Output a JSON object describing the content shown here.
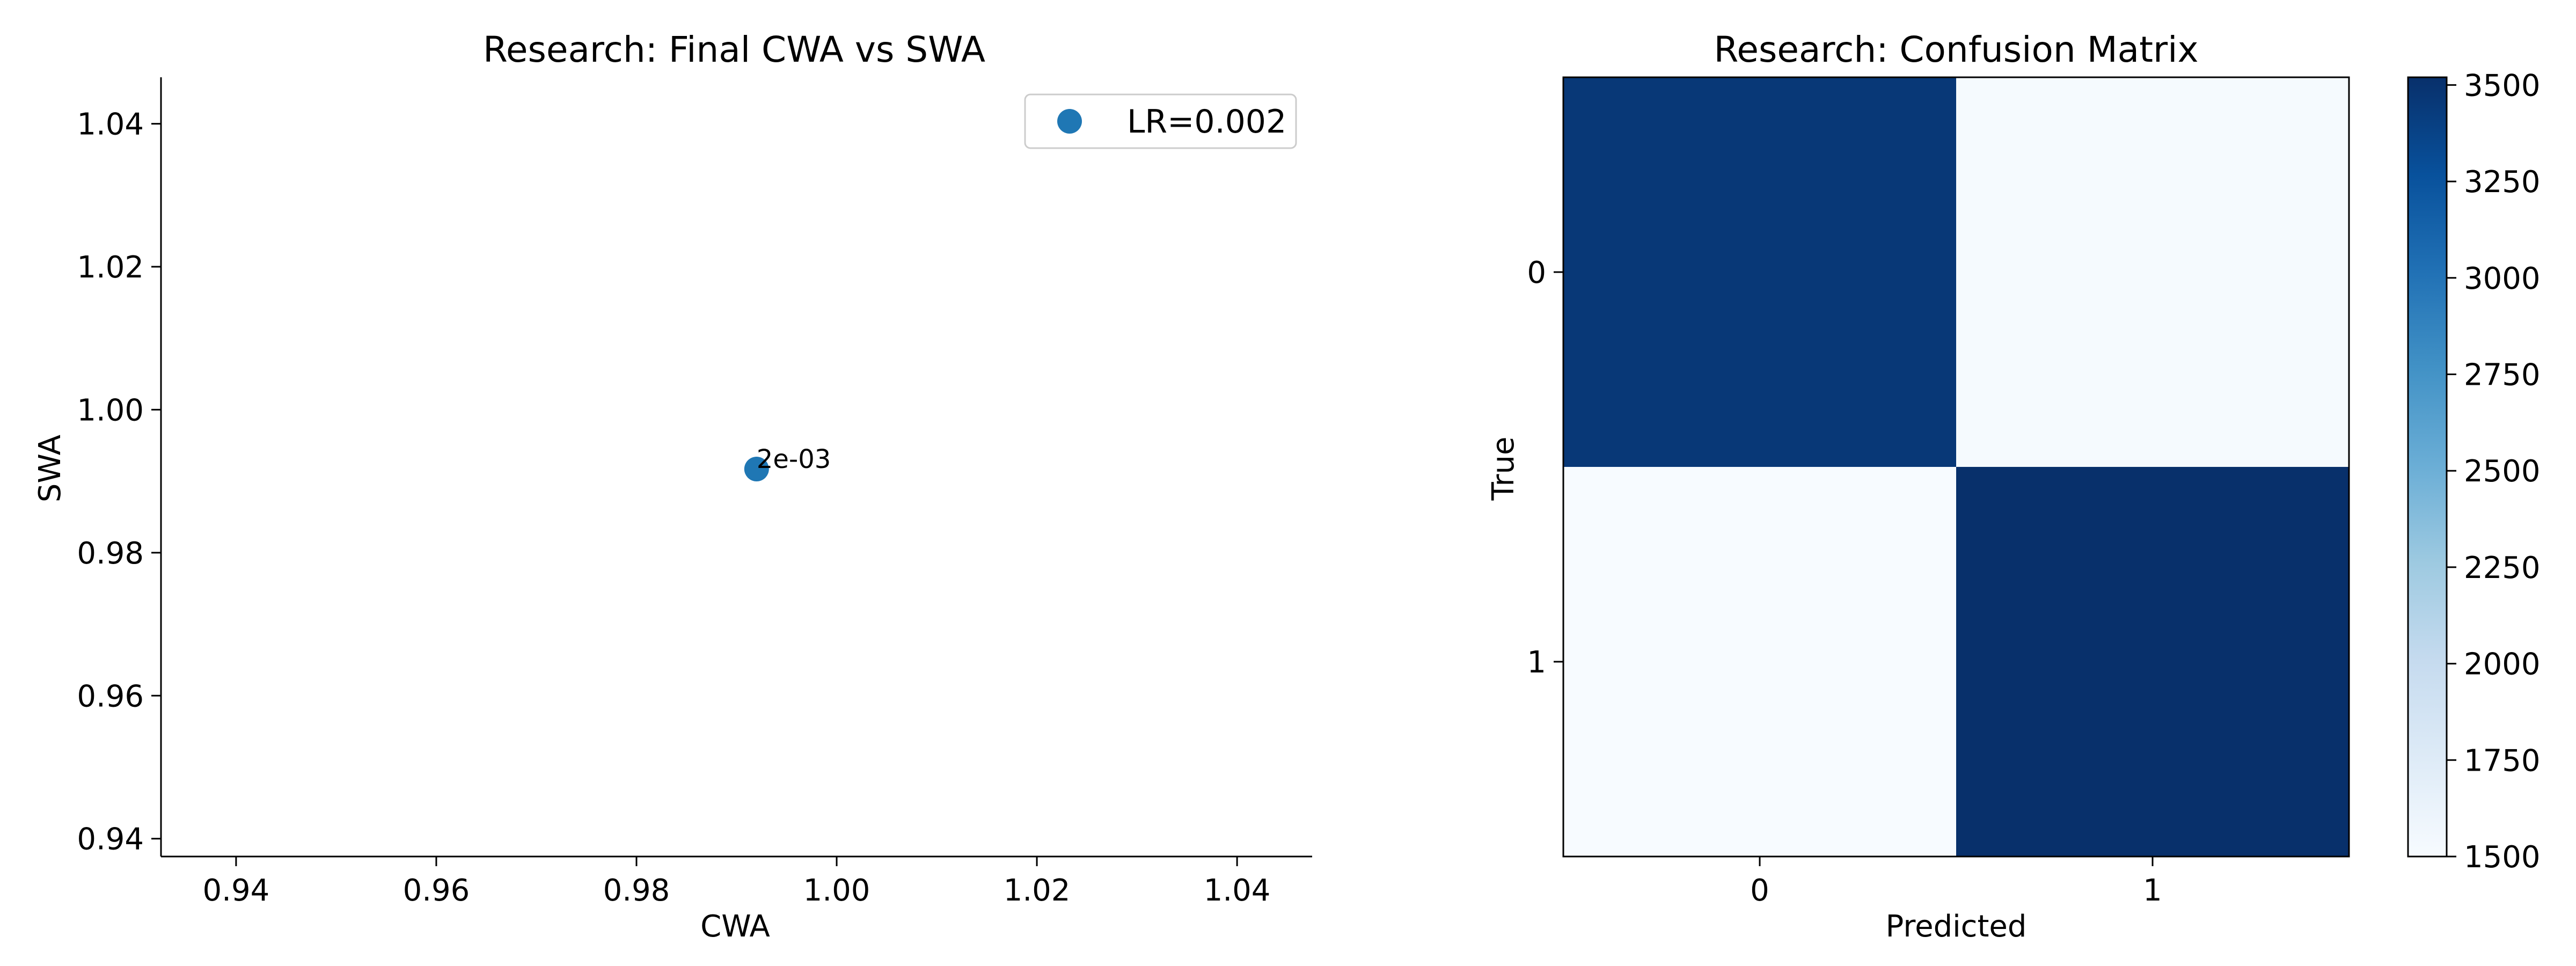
{
  "chart_data": [
    {
      "type": "scatter",
      "title": "Research: Final CWA vs SWA",
      "xlabel": "CWA",
      "ylabel": "SWA",
      "xlim": [
        0.9325,
        1.0475
      ],
      "ylim": [
        0.9375,
        1.0465
      ],
      "xticks": [
        0.94,
        0.96,
        0.98,
        1.0,
        1.02,
        1.04
      ],
      "xtick_labels": [
        "0.94",
        "0.96",
        "0.98",
        "1.00",
        "1.02",
        "1.04"
      ],
      "yticks": [
        0.94,
        0.96,
        0.98,
        1.0,
        1.02,
        1.04
      ],
      "ytick_labels": [
        "0.94",
        "0.96",
        "0.98",
        "1.00",
        "1.02",
        "1.04"
      ],
      "grid": false,
      "legend": "top-right",
      "series": [
        {
          "name": "LR=0.002",
          "color": "#1f77b4",
          "points": [
            {
              "x": 0.992,
              "y": 0.9917,
              "label": "2e-03"
            }
          ]
        }
      ]
    },
    {
      "type": "heatmap",
      "title": "Research: Confusion Matrix",
      "xlabel": "Predicted",
      "ylabel": "True",
      "x_categories": [
        "0",
        "1"
      ],
      "y_categories": [
        "0",
        "1"
      ],
      "values": [
        [
          3460,
          1520
        ],
        [
          1500,
          3520
        ]
      ],
      "colormap": "Blues",
      "vmin": 1500,
      "vmax": 3520,
      "colorbar_ticks": [
        1500,
        1750,
        2000,
        2250,
        2500,
        2750,
        3000,
        3250,
        3500
      ],
      "colorbar_tick_labels": [
        "1500",
        "1750",
        "2000",
        "2250",
        "2500",
        "2750",
        "3000",
        "3250",
        "3500"
      ]
    }
  ]
}
